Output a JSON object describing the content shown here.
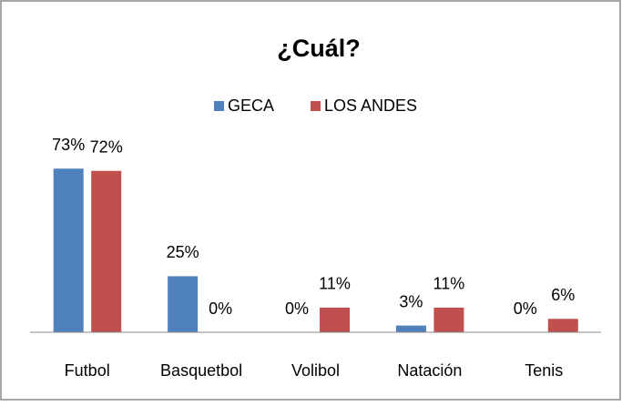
{
  "chart_data": {
    "type": "bar",
    "title": "¿Cuál?",
    "categories": [
      "Futbol",
      "Basquetbol",
      "Volibol",
      "Natación",
      "Tenis"
    ],
    "series": [
      {
        "name": "GECA",
        "color": "#4f81bd",
        "values": [
          73,
          25,
          0,
          3,
          0
        ],
        "value_labels": [
          "73%",
          "25%",
          "0%",
          "3%",
          "0%"
        ]
      },
      {
        "name": "LOS ANDES",
        "color": "#c0504d",
        "values": [
          72,
          0,
          11,
          11,
          6
        ],
        "value_labels": [
          "72%",
          "0%",
          "11%",
          "11%",
          "6%"
        ]
      }
    ],
    "ylim": [
      0,
      80
    ],
    "grid": false,
    "legend": "top"
  }
}
